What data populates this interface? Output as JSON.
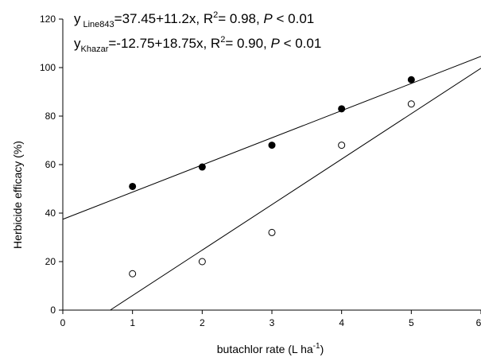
{
  "chart_data": {
    "type": "scatter",
    "xlabel": "butachlor rate (L ha",
    "xlabel_sup": "-1",
    "xlabel_end": ")",
    "ylabel": "Herbicide efficacy (%)",
    "xlim": [
      0,
      6
    ],
    "ylim": [
      0,
      120
    ],
    "x_ticks": [
      0,
      1,
      2,
      3,
      4,
      5,
      6
    ],
    "y_ticks": [
      0,
      20,
      40,
      60,
      80,
      100,
      120
    ],
    "grid": false,
    "series": [
      {
        "key": "line843",
        "marker": "filled-circle",
        "x": [
          1,
          2,
          3,
          4,
          5
        ],
        "y": [
          51,
          59,
          68,
          83,
          95
        ],
        "fit": {
          "intercept": 37.45,
          "slope": 11.2
        }
      },
      {
        "key": "khazar",
        "marker": "open-circle",
        "x": [
          1,
          2,
          3,
          4,
          5
        ],
        "y": [
          15,
          20,
          32,
          68,
          85
        ],
        "fit": {
          "intercept": -12.75,
          "slope": 18.75
        }
      }
    ],
    "annotations": [
      {
        "key": "line843",
        "y_sym": "y",
        "sub": "Line843",
        "equation": "=37.45+11.2x, R",
        "r2_sup": "2",
        "r2_value": "= 0.98, ",
        "p_sym": "P",
        "p_value": " < 0.01"
      },
      {
        "key": "khazar",
        "y_sym": "y",
        "sub": "Khazar",
        "equation": "=-12.75+18.75x, R",
        "r2_sup": "2",
        "r2_value": "= 0.90, ",
        "p_sym": "P",
        "p_value": " < 0.01"
      }
    ]
  }
}
